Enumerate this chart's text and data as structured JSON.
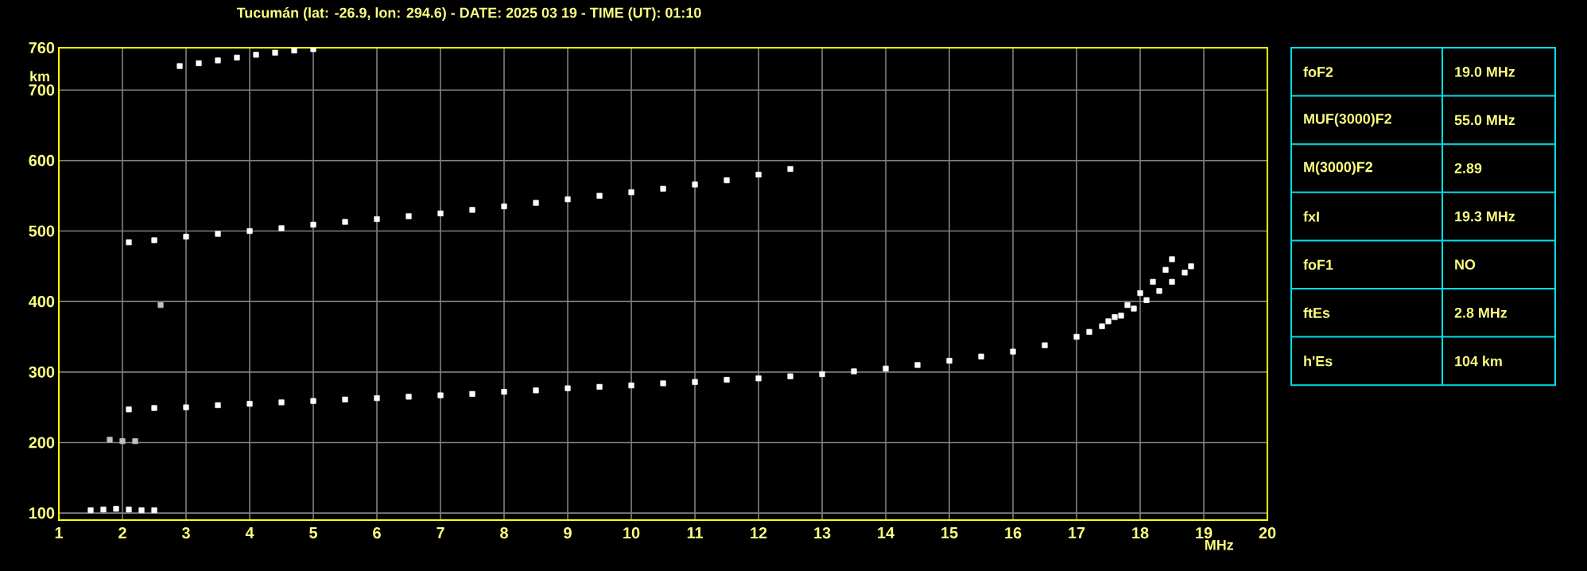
{
  "chart_data": [
    {
      "type": "scatter",
      "title": "Tucumán (lat: -26.9, lon: 294.6) - DATE: 2025 03 19 - TIME (UT): 01:10",
      "xlabel": "MHz",
      "ylabel": "km",
      "xlim": [
        1,
        20
      ],
      "ylim": [
        90,
        760
      ],
      "xticks": [
        1,
        2,
        3,
        4,
        5,
        6,
        7,
        8,
        9,
        10,
        11,
        12,
        13,
        14,
        15,
        16,
        17,
        18,
        19,
        20
      ],
      "yticks": [
        100,
        200,
        300,
        400,
        500,
        600,
        700,
        760
      ],
      "grid": true,
      "marker": "square",
      "series": [
        {
          "color": "#ffffff",
          "x": [
            2.1,
            2.5,
            3,
            3.5,
            4,
            4.5,
            5,
            5.5,
            6,
            6.5,
            7,
            7.5,
            8,
            8.5,
            9,
            9.5,
            10,
            10.5,
            11,
            11.5,
            12,
            12.5,
            13,
            13.5,
            14,
            14.5,
            15,
            15.5,
            16,
            16.5,
            17,
            17.2,
            17.4,
            17.6,
            17.8,
            18.0,
            18.2,
            18.4,
            18.5
          ],
          "values": [
            247,
            249,
            250,
            253,
            255,
            257,
            259,
            261,
            263,
            265,
            267,
            269,
            272,
            274,
            277,
            279,
            281,
            284,
            286,
            289,
            291,
            294,
            297,
            301,
            305,
            310,
            316,
            322,
            329,
            338,
            350,
            357,
            365,
            378,
            395,
            412,
            428,
            445,
            460
          ]
        },
        {
          "color": "#ffffff",
          "x": [
            17.5,
            17.7,
            17.9,
            18.1,
            18.3,
            18.5,
            18.7,
            18.8
          ],
          "values": [
            372,
            380,
            390,
            402,
            415,
            428,
            441,
            450
          ]
        },
        {
          "color": "#ffffff",
          "x": [
            2.1,
            2.5,
            3,
            3.5,
            4,
            4.5,
            5,
            5.5,
            6,
            6.5,
            7,
            7.5,
            8,
            8.5,
            9,
            9.5,
            10,
            10.5,
            11,
            11.5,
            12,
            12.5
          ],
          "values": [
            484,
            487,
            492,
            496,
            500,
            504,
            509,
            513,
            517,
            521,
            525,
            530,
            535,
            540,
            545,
            550,
            555,
            560,
            566,
            572,
            580,
            588
          ]
        },
        {
          "color": "#ffffff",
          "x": [
            2.9,
            3.2,
            3.5,
            3.8,
            4.1,
            4.4,
            4.7,
            5.0
          ],
          "values": [
            734,
            738,
            742,
            746,
            750,
            753,
            756,
            758
          ]
        },
        {
          "color": "#ffffff",
          "x": [
            1.5,
            1.7,
            1.9,
            2.1,
            2.3,
            2.5
          ],
          "values": [
            104,
            105,
            106,
            105,
            104,
            104
          ]
        },
        {
          "color": "#c0c0c0",
          "x": [
            1.8,
            2.0,
            2.2,
            2.6
          ],
          "values": [
            204,
            202,
            202,
            395
          ]
        }
      ]
    },
    {
      "type": "other",
      "annotations": [
        "foF2",
        "19.0 MHz",
        "MUF(3000)F2",
        "55.0 MHz",
        "M(3000)F2",
        "2.89",
        "fxI",
        "19.3 MHz",
        "foF1",
        "NO",
        "ftEs",
        "2.8 MHz",
        "h'Es",
        "104 km"
      ]
    }
  ]
}
